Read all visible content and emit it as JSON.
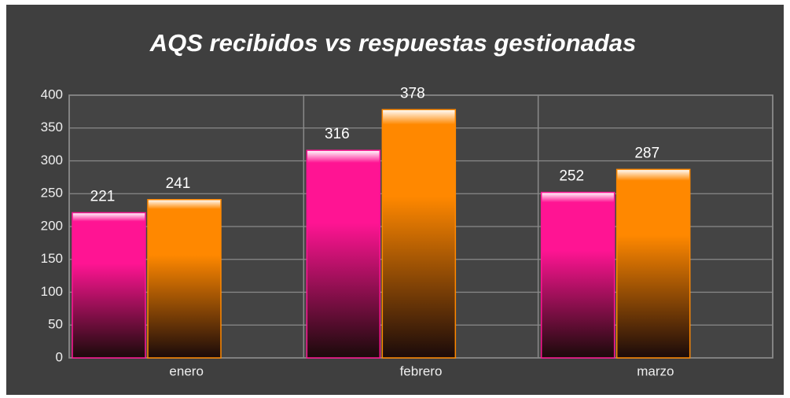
{
  "chart_data": {
    "type": "bar",
    "title": "AQS recibidos vs respuestas gestionadas",
    "categories": [
      "enero",
      "febrero",
      "marzo"
    ],
    "series": [
      {
        "color": "#ff1493",
        "values": [
          221,
          316,
          252
        ]
      },
      {
        "color": "#ff8800",
        "values": [
          241,
          378,
          287
        ]
      }
    ],
    "ylim": [
      0,
      400
    ],
    "yticks": [
      0,
      50,
      100,
      150,
      200,
      250,
      300,
      350,
      400
    ],
    "grid": true
  }
}
